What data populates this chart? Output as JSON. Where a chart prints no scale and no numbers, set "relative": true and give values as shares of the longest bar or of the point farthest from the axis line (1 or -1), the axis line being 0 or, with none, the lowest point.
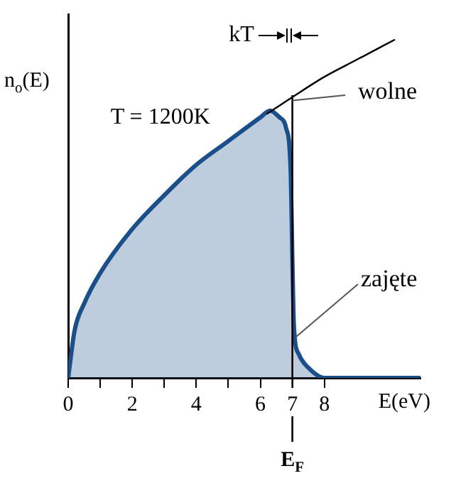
{
  "chart_data": {
    "type": "area",
    "relative": true,
    "xlabel": "E(eV)",
    "ylabel": "n$_{o}$(E)",
    "xlim": [
      0,
      11
    ],
    "xticks": [
      0,
      {
        "value": 1,
        "label": null
      },
      2,
      {
        "value": 3,
        "label": null
      },
      4,
      {
        "value": 5,
        "label": null
      },
      6,
      7,
      8
    ],
    "series": [
      {
        "color": "#1a4f8a",
        "x": [
          0,
          0.2,
          0.5,
          1,
          2,
          3,
          4,
          5,
          6,
          6.3,
          6.6,
          6.8,
          6.95,
          7,
          7.05,
          7.2,
          7.5,
          8,
          11
        ],
        "values": [
          0,
          0.14,
          0.22,
          0.31,
          0.44,
          0.54,
          0.63,
          0.7,
          0.77,
          0.79,
          0.77,
          0.74,
          0.6,
          0.35,
          0.15,
          0.07,
          0.03,
          0,
          0
        ]
      },
      {
        "type": "line",
        "color": "#000000",
        "x": [
          6.2,
          7,
          8,
          9,
          10.2
        ],
        "values": [
          0.78,
          0.83,
          0.89,
          0.94,
          1
        ]
      }
    ],
    "ref_lines": [
      {
        "axis": "x",
        "value": 7,
        "label": "E$_{F}$",
        "color": "#000000"
      }
    ],
    "annotations": [
      "kT",
      "T = 1200K",
      {
        "text": "wolne",
        "x": 7,
        "y": 0.82
      },
      {
        "text": "zajęte",
        "x": 7.1,
        "y": 0.12
      }
    ]
  }
}
